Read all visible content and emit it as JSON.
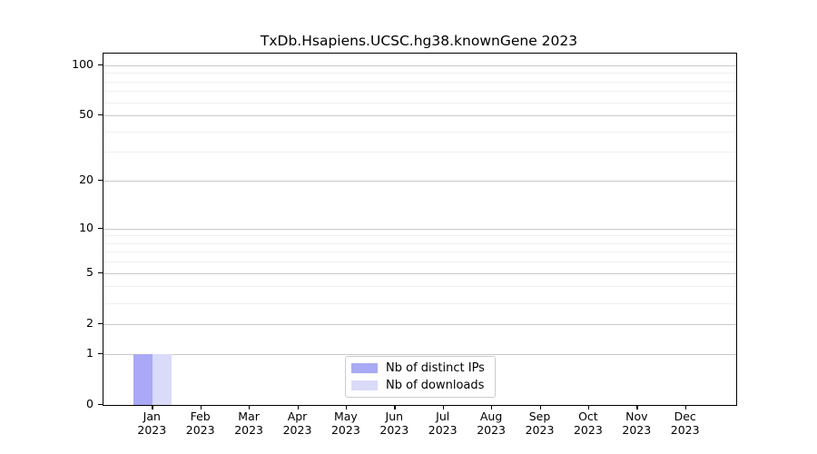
{
  "chart_data": {
    "type": "bar",
    "title": "TxDb.Hsapiens.UCSC.hg38.knownGene 2023",
    "categories": [
      {
        "month": "Jan",
        "year": "2023"
      },
      {
        "month": "Feb",
        "year": "2023"
      },
      {
        "month": "Mar",
        "year": "2023"
      },
      {
        "month": "Apr",
        "year": "2023"
      },
      {
        "month": "May",
        "year": "2023"
      },
      {
        "month": "Jun",
        "year": "2023"
      },
      {
        "month": "Jul",
        "year": "2023"
      },
      {
        "month": "Aug",
        "year": "2023"
      },
      {
        "month": "Sep",
        "year": "2023"
      },
      {
        "month": "Oct",
        "year": "2023"
      },
      {
        "month": "Nov",
        "year": "2023"
      },
      {
        "month": "Dec",
        "year": "2023"
      }
    ],
    "series": [
      {
        "name": "Nb of distinct IPs",
        "color": "#a9a9f5",
        "values": [
          1,
          0,
          0,
          0,
          0,
          0,
          0,
          0,
          0,
          0,
          0,
          0
        ]
      },
      {
        "name": "Nb of downloads",
        "color": "#dadaf9",
        "values": [
          1,
          0,
          0,
          0,
          0,
          0,
          0,
          0,
          0,
          0,
          0,
          0
        ]
      }
    ],
    "xlabel": "",
    "ylabel": "",
    "y_scale": "log1p",
    "y_ticks": [
      0,
      1,
      2,
      5,
      10,
      20,
      50,
      100
    ],
    "y_minor_ticks": [
      3,
      4,
      6,
      7,
      8,
      9,
      30,
      40,
      60,
      70,
      80,
      90
    ],
    "ylim": [
      0,
      117
    ],
    "grid": true,
    "legend_position": "inside-bottom-center",
    "colors": {
      "axis": "#000000",
      "grid_major": "#c9c9c9",
      "grid_minor": "#efefef",
      "background": "#ffffff"
    }
  }
}
